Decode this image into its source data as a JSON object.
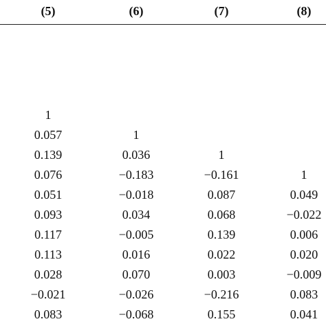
{
  "table": {
    "headers": [
      "(5)",
      "(6)",
      "(7)",
      "(8)"
    ],
    "rows": [
      [
        "1",
        "",
        "",
        ""
      ],
      [
        "0.057",
        "1",
        "",
        ""
      ],
      [
        "0.139",
        "0.036",
        "1",
        ""
      ],
      [
        "0.076",
        "−0.183",
        "−0.161",
        "1"
      ],
      [
        "0.051",
        "−0.018",
        "0.087",
        "0.049"
      ],
      [
        "0.093",
        "0.034",
        "0.068",
        "−0.022"
      ],
      [
        "0.117",
        "−0.005",
        "0.139",
        "0.006"
      ],
      [
        "0.113",
        "0.016",
        "0.022",
        "0.020"
      ],
      [
        "0.028",
        "0.070",
        "0.003",
        "−0.009"
      ],
      [
        "−0.021",
        "−0.026",
        "−0.216",
        "0.083"
      ],
      [
        "0.083",
        "−0.068",
        "0.155",
        "0.041"
      ]
    ]
  }
}
